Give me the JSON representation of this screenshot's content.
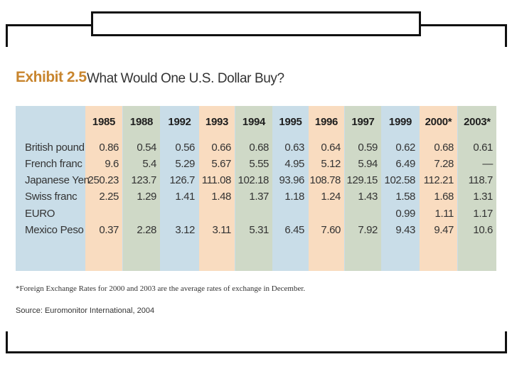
{
  "exhibit": {
    "label": "Exhibit 2.5",
    "title": "What Would One U.S. Dollar Buy?"
  },
  "colors": {
    "panel": "#c9dde8",
    "peach": "#f9dcc0",
    "green": "#cfd9c7",
    "blue": "#c9dde8",
    "accent": "#c8852e"
  },
  "table": {
    "headers": [
      "1985",
      "1988",
      "1992",
      "1993",
      "1994",
      "1995",
      "1996",
      "1997",
      "1999",
      "2000*",
      "2003*"
    ],
    "rows": [
      {
        "label": "British pound",
        "values": [
          "0.86",
          "0.54",
          "0.56",
          "0.66",
          "0.68",
          "0.63",
          "0.64",
          "0.59",
          "0.62",
          "0.68",
          "0.61"
        ]
      },
      {
        "label": "French franc",
        "values": [
          "9.6",
          "5.4",
          "5.29",
          "5.67",
          "5.55",
          "4.95",
          "5.12",
          "5.94",
          "6.49",
          "7.28",
          "—"
        ]
      },
      {
        "label": "Japanese Yen",
        "values": [
          "250.23",
          "123.7",
          "126.7",
          "111.08",
          "102.18",
          "93.96",
          "108.78",
          "129.15",
          "102.58",
          "112.21",
          "118.7"
        ]
      },
      {
        "label": "Swiss franc",
        "values": [
          "2.25",
          "1.29",
          "1.41",
          "1.48",
          "1.37",
          "1.18",
          "1.24",
          "1.43",
          "1.58",
          "1.68",
          "1.31"
        ]
      },
      {
        "label": "EURO",
        "values": [
          "",
          "",
          "",
          "",
          "",
          "",
          "",
          "",
          "0.99",
          "1.11",
          "1.17"
        ]
      },
      {
        "label": "Mexico Peso",
        "values": [
          "0.37",
          "2.28",
          "3.12",
          "3.11",
          "5.31",
          "6.45",
          "7.60",
          "7.92",
          "9.43",
          "9.47",
          "10.6"
        ]
      }
    ]
  },
  "footnote": "*Foreign Exchange Rates for 2000 and 2003 are the average rates of exchange in December.",
  "source": "Source: Euromonitor International, 2004"
}
